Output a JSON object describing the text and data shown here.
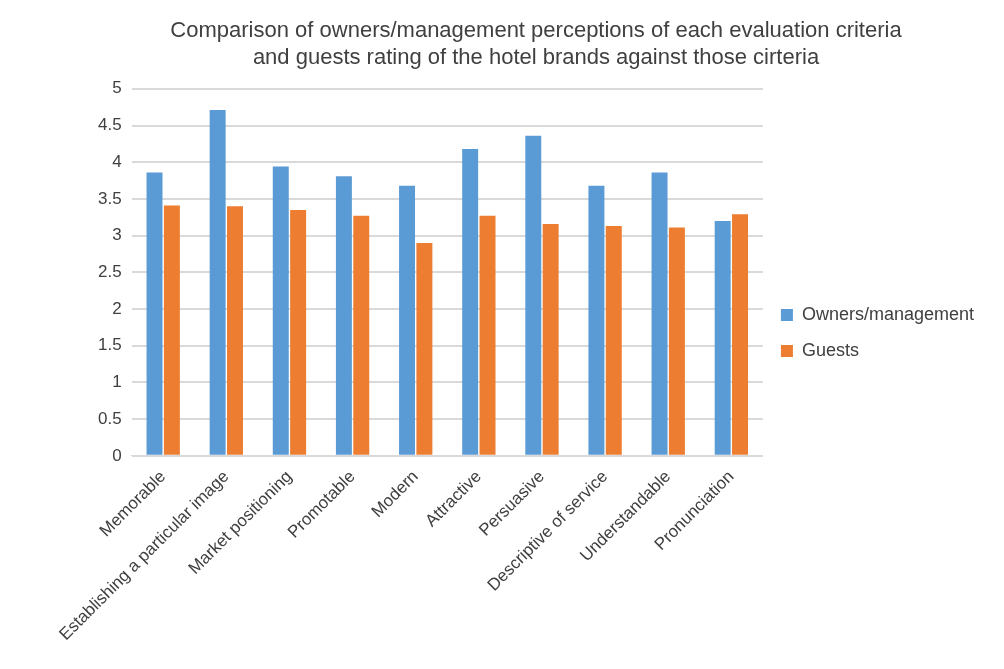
{
  "chart_data": {
    "type": "bar",
    "title": "Comparison of owners/management perceptions of each evaluation criteria and guests rating of the hotel brands against those cirteria",
    "categories": [
      "Memorable",
      "Establishing a particular image",
      "Market positioning",
      "Promotable",
      "Modern",
      "Attractive",
      "Persuasive",
      "Descriptive of service",
      "Understandable",
      "Pronunciation"
    ],
    "series": [
      {
        "name": "Owners/management",
        "color": "#5b9bd5",
        "values": [
          3.86,
          4.71,
          3.94,
          3.81,
          3.68,
          4.18,
          4.36,
          3.68,
          3.86,
          3.2
        ]
      },
      {
        "name": "Guests",
        "color": "#ed7d31",
        "values": [
          3.41,
          3.4,
          3.35,
          3.27,
          2.9,
          3.27,
          3.16,
          3.13,
          3.11,
          3.29
        ]
      }
    ],
    "ylim": [
      0,
      5
    ],
    "yticks": [
      0,
      0.5,
      1,
      1.5,
      2,
      2.5,
      3,
      3.5,
      4,
      4.5,
      5
    ],
    "grid": "y",
    "legend": "right"
  }
}
